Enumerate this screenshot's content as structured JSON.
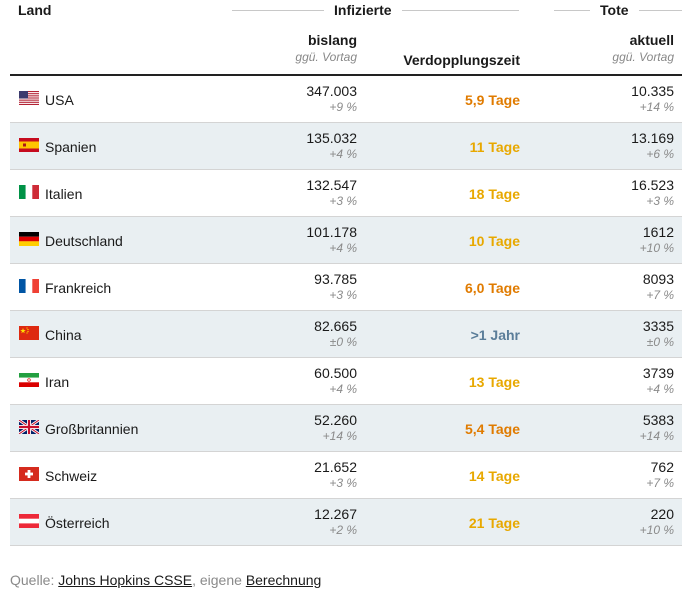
{
  "header": {
    "land": "Land",
    "infizierte": "Infizierte",
    "tote": "Tote",
    "col_bislang": "bislang",
    "col_bislang_sub": "ggü. Vortag",
    "col_verdopplung": "Verdopplungszeit",
    "col_aktuell": "aktuell",
    "col_aktuell_sub": "ggü. Vortag"
  },
  "colors": {
    "red_orange": "#e07b00",
    "orange": "#e8a800",
    "blue_gray": "#5a7d99"
  },
  "rows": [
    {
      "country": "USA",
      "flag": "us-flag",
      "infected": "347.003",
      "infected_change": "+9 %",
      "doubling": "5,9 Tage",
      "doubling_color": "#e07b00",
      "deaths": "10.335",
      "deaths_change": "+14 %"
    },
    {
      "country": "Spanien",
      "flag": "es-flag",
      "infected": "135.032",
      "infected_change": "+4 %",
      "doubling": "11 Tage",
      "doubling_color": "#e8a800",
      "deaths": "13.169",
      "deaths_change": "+6 %"
    },
    {
      "country": "Italien",
      "flag": "it-flag",
      "infected": "132.547",
      "infected_change": "+3 %",
      "doubling": "18 Tage",
      "doubling_color": "#e8a800",
      "deaths": "16.523",
      "deaths_change": "+3 %"
    },
    {
      "country": "Deutschland",
      "flag": "de-flag",
      "infected": "101.178",
      "infected_change": "+4 %",
      "doubling": "10 Tage",
      "doubling_color": "#e8a800",
      "deaths": "1612",
      "deaths_change": "+10 %"
    },
    {
      "country": "Frankreich",
      "flag": "fr-flag",
      "infected": "93.785",
      "infected_change": "+3 %",
      "doubling": "6,0 Tage",
      "doubling_color": "#e07b00",
      "deaths": "8093",
      "deaths_change": "+7 %"
    },
    {
      "country": "China",
      "flag": "cn-flag",
      "infected": "82.665",
      "infected_change": "±0 %",
      "doubling": ">1 Jahr",
      "doubling_color": "#5a7d99",
      "deaths": "3335",
      "deaths_change": "±0 %"
    },
    {
      "country": "Iran",
      "flag": "ir-flag",
      "infected": "60.500",
      "infected_change": "+4 %",
      "doubling": "13 Tage",
      "doubling_color": "#e8a800",
      "deaths": "3739",
      "deaths_change": "+4 %"
    },
    {
      "country": "Großbritannien",
      "flag": "gb-flag",
      "infected": "52.260",
      "infected_change": "+14 %",
      "doubling": "5,4 Tage",
      "doubling_color": "#e07b00",
      "deaths": "5383",
      "deaths_change": "+14 %"
    },
    {
      "country": "Schweiz",
      "flag": "ch-flag",
      "infected": "21.652",
      "infected_change": "+3 %",
      "doubling": "14 Tage",
      "doubling_color": "#e8a800",
      "deaths": "762",
      "deaths_change": "+7 %"
    },
    {
      "country": "Österreich",
      "flag": "at-flag",
      "infected": "12.267",
      "infected_change": "+2 %",
      "doubling": "21 Tage",
      "doubling_color": "#e8a800",
      "deaths": "220",
      "deaths_change": "+10 %"
    }
  ],
  "source": {
    "prefix": "Quelle: ",
    "link1": "Johns Hopkins CSSE",
    "middle": ", eigene ",
    "link2": "Berechnung"
  }
}
